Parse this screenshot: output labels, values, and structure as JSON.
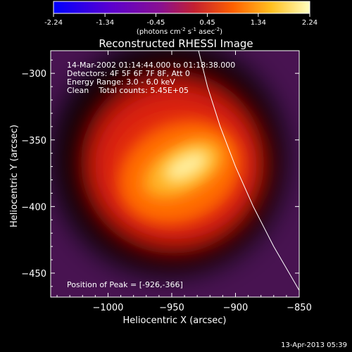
{
  "colorbar": {
    "ticks": [
      "-2.24",
      "-1.34",
      "-0.45",
      "0.45",
      "1.34",
      "2.24"
    ],
    "units_label": "(photons cm",
    "units_exp1": "-2",
    "units_mid": " s",
    "units_exp2": "-1",
    "units_mid2": " asec",
    "units_exp3": "-2",
    "units_end": ")",
    "min": -2.24,
    "max": 2.24
  },
  "chart_data": {
    "type": "heatmap",
    "title": "Reconstructed RHESSI Image",
    "xlabel": "Heliocentric X (arcsec)",
    "ylabel": "Heliocentric Y (arcsec)",
    "xlim": [
      -1045,
      -850
    ],
    "ylim": [
      -468,
      -283
    ],
    "x_ticks": [
      -1000,
      -950,
      -900,
      -850
    ],
    "x_tick_labels": [
      "−1000",
      "−950",
      "−900",
      "−850"
    ],
    "y_ticks": [
      -300,
      -350,
      -400,
      -450
    ],
    "y_tick_labels": [
      "−300",
      "−350",
      "−400",
      "−450"
    ],
    "peak": [
      -926,
      -366
    ],
    "colormap": "hot",
    "limb_curve": [
      [
        -929,
        -283
      ],
      [
        -922,
        -310
      ],
      [
        -912,
        -340
      ],
      [
        -900,
        -370
      ],
      [
        -886,
        -400
      ],
      [
        -870,
        -430
      ],
      [
        -853,
        -458
      ],
      [
        -850,
        -463
      ]
    ],
    "annotations": {
      "time": "14-Mar-2002 01:14:44.000 to 01:18:38.000",
      "detectors": "Detectors: 4F 5F 6F 7F 8F, Att 0",
      "energy": "Energy Range: 3.0 - 6.0 keV",
      "clean": "Clean    Total counts: 5.45E+05",
      "peak_position": "Position of Peak = [-926,-366]"
    }
  },
  "footer": {
    "timestamp": "13-Apr-2013 05:39"
  }
}
